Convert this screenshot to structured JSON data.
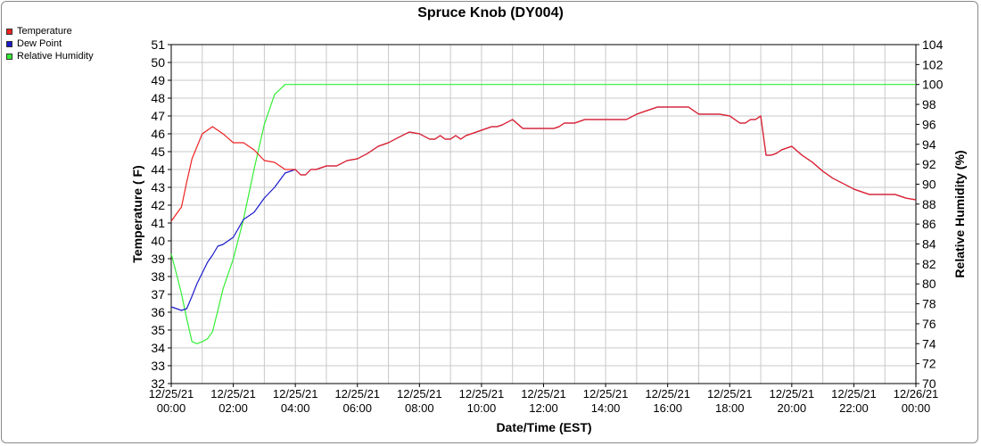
{
  "chart_data": {
    "type": "line",
    "title": "Spruce Knob (DY004)",
    "xlabel": "Date/Time (EST)",
    "ylabel": "Temperature ( F)",
    "y2label": "Relative Humidity (%)",
    "xlim": [
      0,
      24
    ],
    "ylim": [
      32,
      51
    ],
    "y2lim": [
      70,
      104
    ],
    "grid": true,
    "legend_position": "top-left",
    "x_tick_labels": [
      [
        "12/25/21",
        "00:00"
      ],
      [
        "12/25/21",
        "02:00"
      ],
      [
        "12/25/21",
        "04:00"
      ],
      [
        "12/25/21",
        "06:00"
      ],
      [
        "12/25/21",
        "08:00"
      ],
      [
        "12/25/21",
        "10:00"
      ],
      [
        "12/25/21",
        "12:00"
      ],
      [
        "12/25/21",
        "14:00"
      ],
      [
        "12/25/21",
        "16:00"
      ],
      [
        "12/25/21",
        "18:00"
      ],
      [
        "12/25/21",
        "20:00"
      ],
      [
        "12/25/21",
        "22:00"
      ],
      [
        "12/26/21",
        "00:00"
      ]
    ],
    "y_ticks": [
      32,
      33,
      34,
      35,
      36,
      37,
      38,
      39,
      40,
      41,
      42,
      43,
      44,
      45,
      46,
      47,
      48,
      49,
      50,
      51
    ],
    "y2_ticks": [
      70,
      72,
      74,
      76,
      78,
      80,
      82,
      84,
      86,
      88,
      90,
      92,
      94,
      96,
      98,
      100,
      102,
      104
    ],
    "series": [
      {
        "name": "Temperature",
        "color": "#ee2222",
        "axis": "left",
        "x": [
          0,
          0.33,
          0.5,
          0.67,
          1,
          1.33,
          1.67,
          2,
          2.33,
          2.67,
          3,
          3.33,
          3.67,
          4,
          4.17,
          4.33,
          4.5,
          4.67,
          5,
          5.33,
          5.67,
          6,
          6.33,
          6.67,
          7,
          7.33,
          7.67,
          8,
          8.33,
          8.5,
          8.67,
          8.83,
          9,
          9.17,
          9.33,
          9.5,
          9.67,
          10,
          10.33,
          10.5,
          10.67,
          11,
          11.33,
          12,
          12.33,
          12.5,
          12.67,
          13,
          13.33,
          13.67,
          14,
          14.33,
          14.67,
          15,
          15.33,
          15.67,
          16,
          16.33,
          16.67,
          17,
          17.33,
          17.67,
          18,
          18.33,
          18.5,
          18.67,
          18.83,
          19,
          19.17,
          19.33,
          19.5,
          19.67,
          20,
          20.33,
          20.67,
          21,
          21.33,
          21.67,
          22,
          22.33,
          22.5,
          22.67,
          23,
          23.33,
          23.67,
          24
        ],
        "values": [
          41.1,
          41.9,
          43.3,
          44.6,
          46.0,
          46.4,
          46.0,
          45.5,
          45.5,
          45.1,
          44.5,
          44.4,
          44.0,
          44.0,
          43.7,
          43.7,
          44.0,
          44.0,
          44.2,
          44.2,
          44.5,
          44.6,
          44.9,
          45.3,
          45.5,
          45.8,
          46.1,
          46.0,
          45.7,
          45.7,
          45.9,
          45.7,
          45.7,
          45.9,
          45.7,
          45.9,
          46.0,
          46.2,
          46.4,
          46.4,
          46.5,
          46.8,
          46.3,
          46.3,
          46.3,
          46.4,
          46.6,
          46.6,
          46.8,
          46.8,
          46.8,
          46.8,
          46.8,
          47.1,
          47.3,
          47.5,
          47.5,
          47.5,
          47.5,
          47.1,
          47.1,
          47.1,
          47.0,
          46.6,
          46.6,
          46.8,
          46.8,
          47.0,
          44.8,
          44.8,
          44.9,
          45.1,
          45.3,
          44.8,
          44.4,
          43.9,
          43.5,
          43.2,
          42.9,
          42.7,
          42.6,
          42.6,
          42.6,
          42.6,
          42.4,
          42.3
        ]
      },
      {
        "name": "Dew Point",
        "color": "#1a1acc",
        "axis": "left",
        "x": [
          0,
          0.17,
          0.33,
          0.5,
          0.67,
          0.83,
          1,
          1.17,
          1.33,
          1.5,
          1.67,
          2,
          2.33,
          2.67,
          3,
          3.33,
          3.67,
          4,
          4.17,
          4.33,
          4.5,
          4.67,
          5,
          5.33,
          5.67,
          6,
          6.33,
          6.67,
          7,
          7.33,
          7.67,
          8,
          8.33,
          8.5,
          8.67,
          8.83,
          9,
          9.17,
          9.33,
          9.5,
          9.67,
          10,
          10.33,
          10.5,
          10.67,
          11,
          11.33,
          12,
          12.33,
          12.5,
          12.67,
          13,
          13.33,
          13.67,
          14,
          14.33,
          14.67,
          15,
          15.33,
          15.67,
          16,
          16.33,
          16.67,
          17,
          17.33,
          17.67,
          18,
          18.33,
          18.5,
          18.67,
          18.83,
          19,
          19.17,
          19.33,
          19.5,
          19.67,
          20,
          20.33,
          20.67,
          21,
          21.33,
          21.67,
          22,
          22.33,
          22.5,
          22.67,
          23,
          23.33,
          23.67,
          24
        ],
        "values": [
          36.3,
          36.2,
          36.1,
          36.2,
          36.9,
          37.6,
          38.2,
          38.8,
          39.2,
          39.7,
          39.8,
          40.2,
          41.2,
          41.6,
          42.4,
          43.0,
          43.8,
          44.0,
          43.7,
          43.7,
          44.0,
          44.0,
          44.2,
          44.2,
          44.5,
          44.6,
          44.9,
          45.3,
          45.5,
          45.8,
          46.1,
          46.0,
          45.7,
          45.7,
          45.9,
          45.7,
          45.7,
          45.9,
          45.7,
          45.9,
          46.0,
          46.2,
          46.4,
          46.4,
          46.5,
          46.8,
          46.3,
          46.3,
          46.3,
          46.4,
          46.6,
          46.6,
          46.8,
          46.8,
          46.8,
          46.8,
          46.8,
          47.1,
          47.3,
          47.5,
          47.5,
          47.5,
          47.5,
          47.1,
          47.1,
          47.1,
          47.0,
          46.6,
          46.6,
          46.8,
          46.8,
          47.0,
          44.8,
          44.8,
          44.9,
          45.1,
          45.3,
          44.8,
          44.4,
          43.9,
          43.5,
          43.2,
          42.9,
          42.7,
          42.6,
          42.6,
          42.6,
          42.6,
          42.4,
          42.3
        ]
      },
      {
        "name": "Relative Humidity",
        "color": "#33ee33",
        "axis": "right",
        "x": [
          0,
          0.17,
          0.33,
          0.5,
          0.67,
          0.83,
          1,
          1.17,
          1.33,
          1.5,
          1.67,
          2,
          2.33,
          2.67,
          3,
          3.33,
          3.67,
          3.83,
          4,
          4.33,
          24
        ],
        "values": [
          83.0,
          81.0,
          79.0,
          76.5,
          74.2,
          74.0,
          74.2,
          74.5,
          75.2,
          77.3,
          79.5,
          82.5,
          86.5,
          91.5,
          96.0,
          99.0,
          100,
          100,
          100,
          100,
          100
        ]
      }
    ]
  }
}
